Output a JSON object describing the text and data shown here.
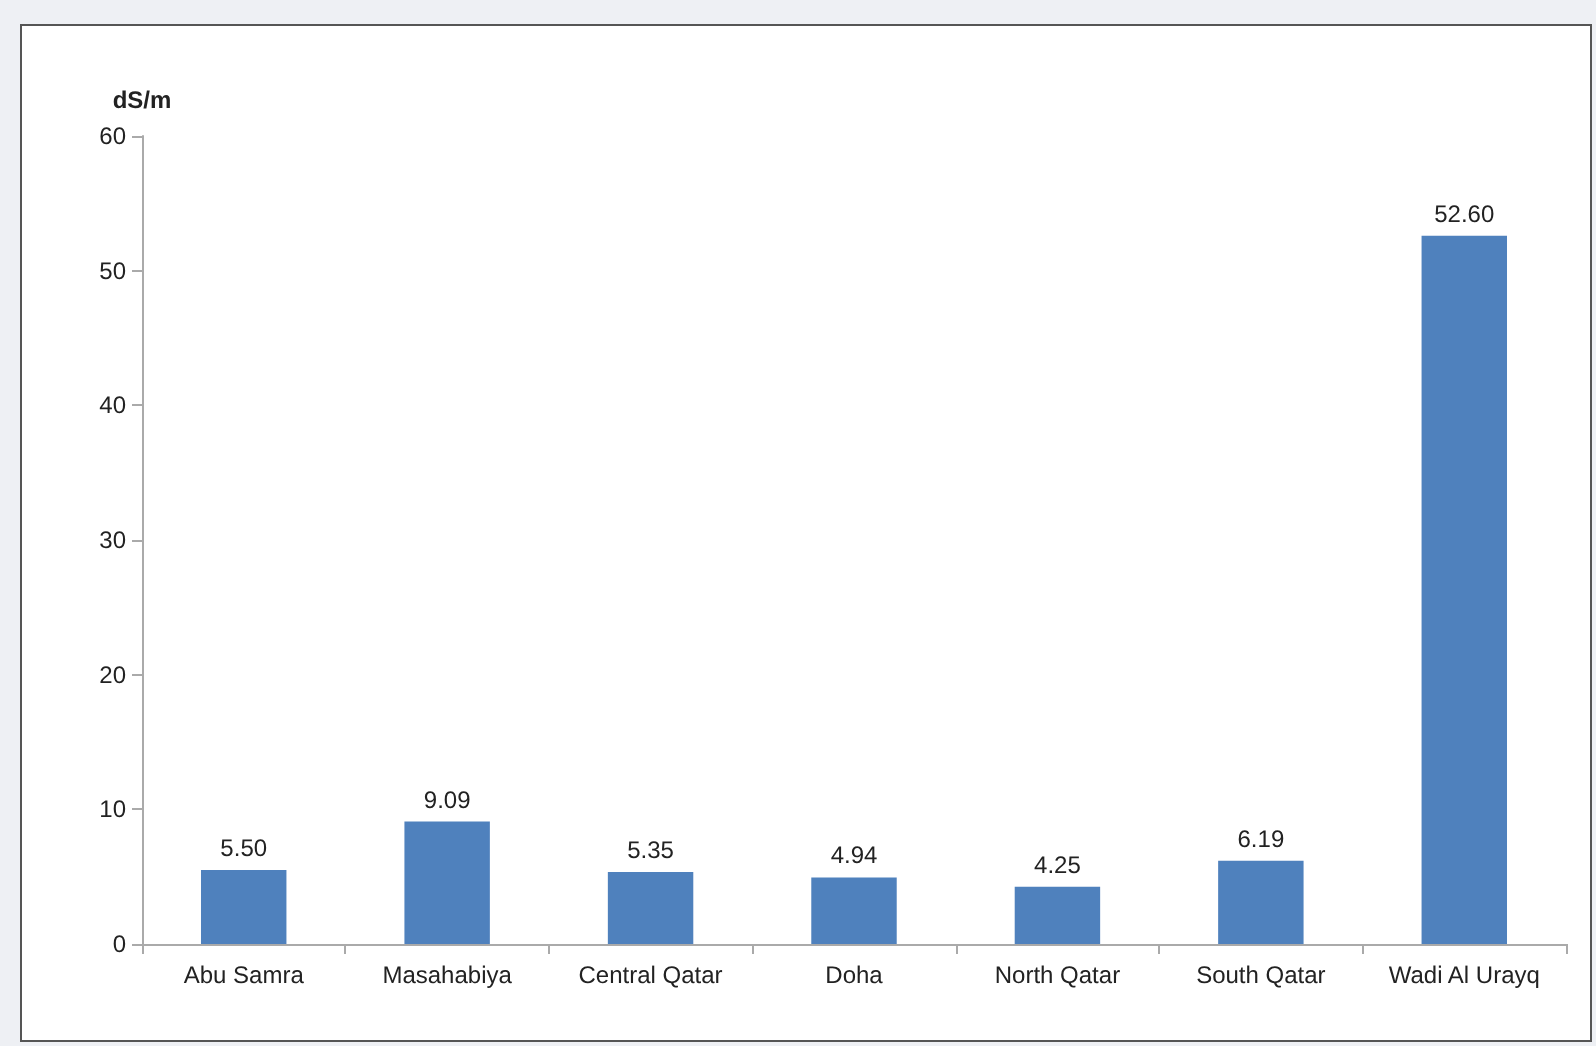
{
  "chart_data": {
    "type": "bar",
    "ylabel": "dS/m",
    "categories": [
      "Abu Samra",
      "Masahabiya",
      "Central Qatar",
      "Doha",
      "North Qatar",
      "South Qatar",
      "Wadi Al Urayq"
    ],
    "values": [
      5.5,
      9.09,
      5.35,
      4.94,
      4.25,
      6.19,
      52.6
    ],
    "value_labels": [
      "5.50",
      "9.09",
      "5.35",
      "4.94",
      "4.25",
      "6.19",
      "52.60"
    ],
    "color": "#4f81bd",
    "ylim": [
      0,
      60
    ],
    "yticks": [
      0,
      10,
      20,
      30,
      40,
      50,
      60
    ],
    "grid": false
  }
}
